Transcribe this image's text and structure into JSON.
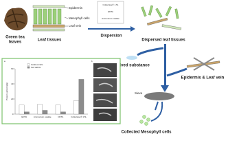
{
  "labels": {
    "green_tea": [
      "Green tea",
      "leaves"
    ],
    "leaf_tissues": "Leaf tissues",
    "epidermis": "Epidermis",
    "mesophyll": "Mesophyll cells",
    "leaf_vein": "Leaf vein",
    "reagents": [
      "Collectase® 1.5L",
      "EDTA",
      "Ammonium oxalate"
    ],
    "dispersion": "Dispersion",
    "dispersed": "Dispersed leaf tissues",
    "dissolved": "Dissolved substance",
    "epidermis_vein": "Epidermis & Leaf vein",
    "sieve": "Sieve",
    "collected": "Collected Mesophyll cells",
    "panel_a": "a",
    "panel_b": "b"
  },
  "chart_data": {
    "type": "bar",
    "y_label": "Protein yield (mg/g)",
    "categories": [
      "EDTA",
      "Ammonium oxalate",
      "CDTA",
      "Collectase® 1.5L"
    ],
    "series": [
      {
        "name": "Isolated cells",
        "color": "#ffffff",
        "values": [
          12,
          13,
          12,
          18
        ]
      },
      {
        "name": "Cell debris",
        "color": "#8c8c8c",
        "values": [
          3,
          5,
          3,
          46
        ]
      }
    ],
    "ylim": [
      0,
      60
    ],
    "yticks": [
      0,
      20,
      40,
      60
    ]
  }
}
